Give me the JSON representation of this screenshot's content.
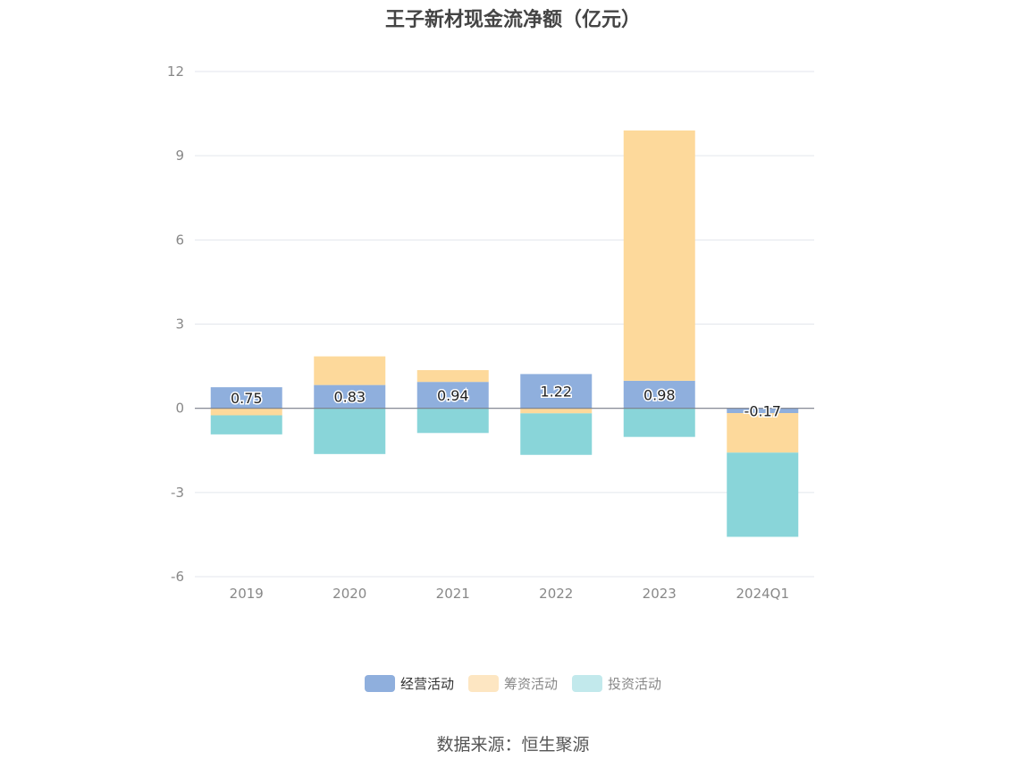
{
  "chart_data": {
    "type": "bar",
    "stacked": true,
    "title": "王子新材现金流净额（亿元）",
    "categories": [
      "2019",
      "2020",
      "2021",
      "2022",
      "2023",
      "2024Q1"
    ],
    "series": [
      {
        "name": "经营活动",
        "values": [
          0.75,
          0.83,
          0.94,
          1.22,
          0.98,
          -0.17
        ],
        "color": "#8fafdd"
      },
      {
        "name": "筹资活动",
        "values": [
          -0.25,
          1.02,
          0.42,
          -0.18,
          8.92,
          -1.41
        ],
        "color": "#fdd99b"
      },
      {
        "name": "投资活动",
        "values": [
          -0.68,
          -1.63,
          -0.88,
          -1.48,
          -1.02,
          -3.0
        ],
        "color": "#89d5d9"
      }
    ],
    "data_labels": [
      "0.75",
      "0.83",
      "0.94",
      "1.22",
      "0.98",
      "-0.17"
    ],
    "ylim": [
      -6,
      12
    ],
    "yticks": [
      "12",
      "9",
      "6",
      "3",
      "0",
      "-3",
      "-6"
    ],
    "grid": true,
    "legend_position": "bottom-center"
  },
  "legend": [
    {
      "label": "经营活动",
      "color": "#8fafdd"
    },
    {
      "label": "筹资活动",
      "color": "#fde6c2"
    },
    {
      "label": "投资活动",
      "color": "#c2e9ec"
    }
  ],
  "source_text": "数据来源：恒生聚源"
}
